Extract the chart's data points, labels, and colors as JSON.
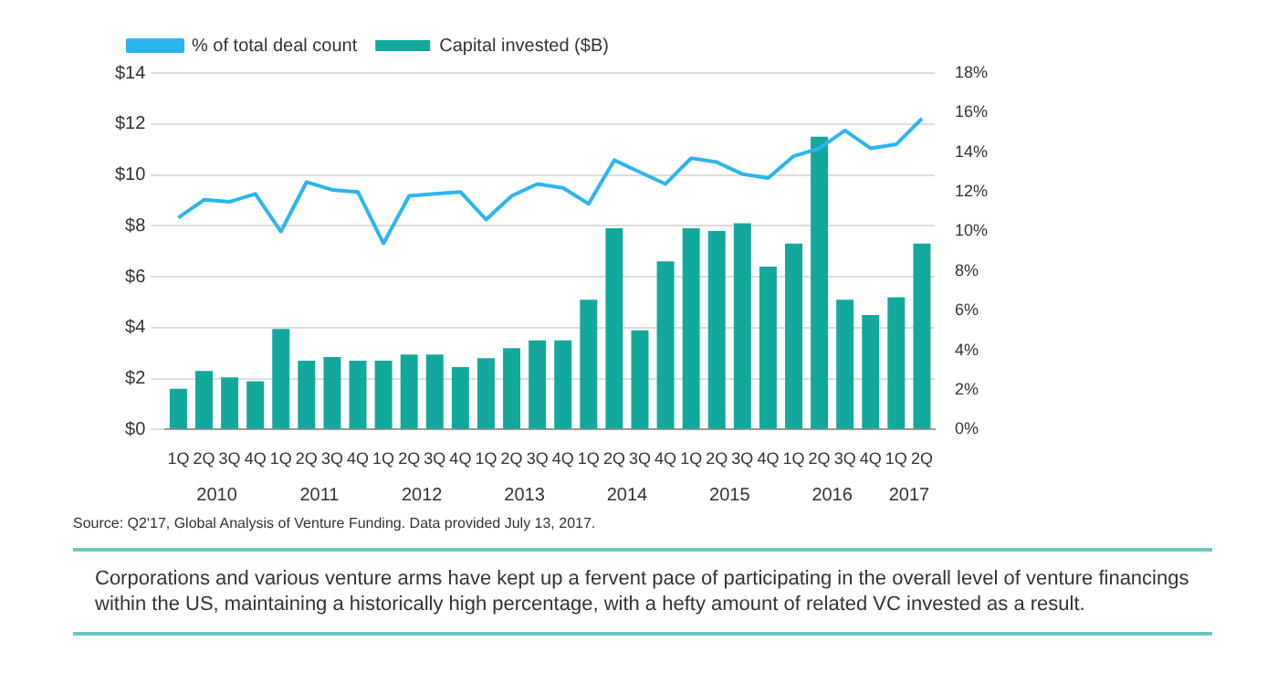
{
  "chart_data": {
    "type": "bar",
    "categories": [
      "1Q",
      "2Q",
      "3Q",
      "4Q",
      "1Q",
      "2Q",
      "3Q",
      "4Q",
      "1Q",
      "2Q",
      "3Q",
      "4Q",
      "1Q",
      "2Q",
      "3Q",
      "4Q",
      "1Q",
      "2Q",
      "3Q",
      "4Q",
      "1Q",
      "2Q",
      "3Q",
      "4Q",
      "1Q",
      "2Q",
      "3Q",
      "4Q",
      "1Q",
      "2Q"
    ],
    "series": [
      {
        "name": "Capital invested ($B)",
        "color": "#13a89c",
        "values": [
          1.6,
          2.3,
          2.05,
          1.9,
          3.95,
          2.7,
          2.85,
          2.7,
          2.7,
          2.95,
          2.95,
          2.45,
          2.8,
          3.2,
          3.5,
          3.5,
          5.1,
          7.9,
          3.9,
          6.6,
          7.9,
          7.8,
          8.1,
          6.4,
          7.3,
          11.5,
          5.1,
          4.5,
          5.2,
          7.3
        ]
      },
      {
        "name": "% of total deal count",
        "type": "line",
        "axis": "y2",
        "color": "#2bb5ee",
        "values": [
          10.7,
          11.6,
          11.5,
          11.9,
          10.0,
          12.5,
          12.1,
          12.0,
          9.4,
          11.8,
          11.9,
          12.0,
          10.6,
          11.8,
          12.4,
          12.2,
          11.4,
          13.6,
          13.0,
          12.4,
          13.7,
          13.5,
          12.9,
          12.7,
          13.8,
          14.2,
          15.1,
          14.2,
          14.4,
          15.7
        ]
      }
    ],
    "ylim": [
      0,
      14
    ],
    "yticks": [
      {
        "value": 0,
        "label": "$0"
      },
      {
        "value": 2,
        "label": "$2"
      },
      {
        "value": 4,
        "label": "$4"
      },
      {
        "value": 6,
        "label": "$6"
      },
      {
        "value": 8,
        "label": "$8"
      },
      {
        "value": 10,
        "label": "$10"
      },
      {
        "value": 12,
        "label": "$12"
      },
      {
        "value": 14,
        "label": "$14"
      }
    ],
    "y2lim": [
      0,
      18
    ],
    "y2ticks": [
      {
        "value": 0,
        "label": "0%"
      },
      {
        "value": 2,
        "label": "2%"
      },
      {
        "value": 4,
        "label": "4%"
      },
      {
        "value": 6,
        "label": "6%"
      },
      {
        "value": 8,
        "label": "8%"
      },
      {
        "value": 10,
        "label": "10%"
      },
      {
        "value": 12,
        "label": "12%"
      },
      {
        "value": 14,
        "label": "14%"
      },
      {
        "value": 16,
        "label": "16%"
      },
      {
        "value": 18,
        "label": "18%"
      }
    ],
    "grid": "y",
    "legend": "top",
    "marker": "none",
    "line_style": "solid",
    "annotations": [
      "2010",
      "2011",
      "2012",
      "2013",
      "2014",
      "2015",
      "2016",
      "2017",
      "Source: Q2'17, Global Analysis of Venture Funding. Data provided July 13, 2017.",
      "Corporations and various venture arms have kept up a fervent pace of participating in the overall level of venture financings within the US, maintaining a historically high percentage, with a hefty amount of related VC invested as a result."
    ]
  }
}
